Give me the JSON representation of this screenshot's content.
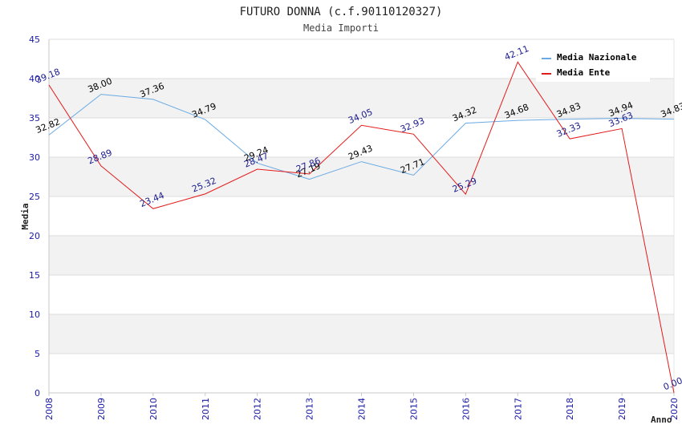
{
  "chart_data": {
    "type": "line",
    "title": "FUTURO DONNA (c.f.90110120327)",
    "subtitle": "Media Importi",
    "xlabel": "Anno",
    "ylabel": "Media",
    "ylim": [
      0,
      45
    ],
    "yticks": [
      0,
      5,
      10,
      15,
      20,
      25,
      30,
      35,
      40,
      45
    ],
    "grid": true,
    "legend_position": "top-right",
    "categories": [
      "2008",
      "2009",
      "2010",
      "2011",
      "2012",
      "2013",
      "2014",
      "2015",
      "2016",
      "2017",
      "2018",
      "2019",
      "2020"
    ],
    "series": [
      {
        "name": "Media Nazionale",
        "color": "#6aaae4",
        "label_color": "#000000",
        "values": [
          32.82,
          38.0,
          37.36,
          34.79,
          29.24,
          27.19,
          29.43,
          27.71,
          34.32,
          34.68,
          34.83,
          34.94,
          34.83
        ],
        "labels": [
          "32.82",
          "38.00",
          "37.36",
          "34.79",
          "29.24",
          "27.19",
          "29.43",
          "27.71",
          "34.32",
          "34.68",
          "34.83",
          "34.94",
          "34.83"
        ]
      },
      {
        "name": "Media Ente",
        "color": "#e41a1a",
        "label_color": "#1a1a8c",
        "values": [
          39.18,
          28.89,
          23.44,
          25.32,
          28.47,
          27.86,
          34.05,
          32.93,
          25.29,
          42.11,
          32.33,
          33.63,
          0.0
        ],
        "labels": [
          "39.18",
          "28.89",
          "23.44",
          "25.32",
          "28.47",
          "27.86",
          "34.05",
          "32.93",
          "25.29",
          "42.11",
          "32.33",
          "33.63",
          "0.00"
        ]
      }
    ]
  }
}
